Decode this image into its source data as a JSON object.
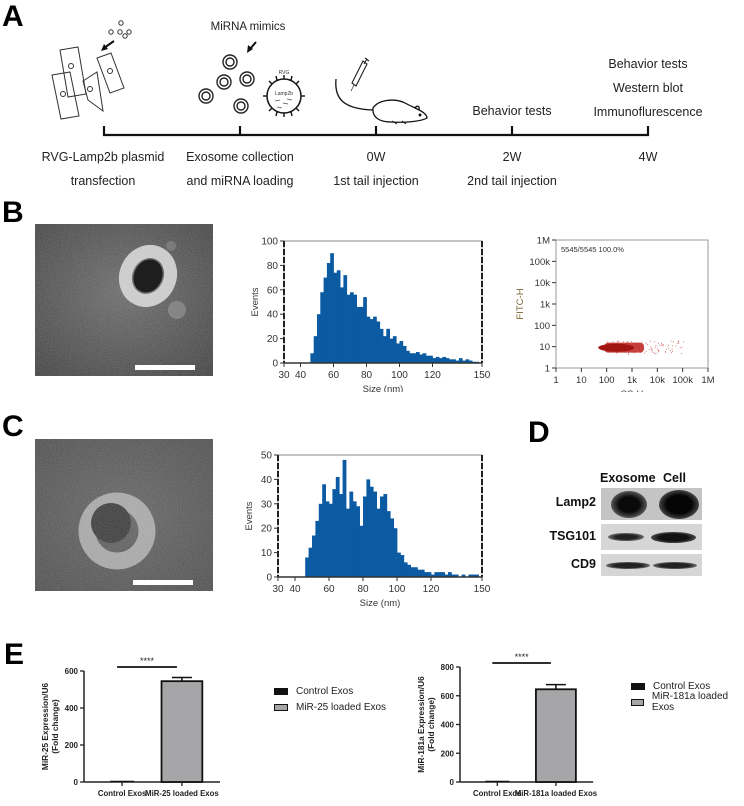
{
  "panels": {
    "A": {
      "letter": "A",
      "mimics_label": "MiRNA mimics",
      "exosome_rvg_label": "RVG",
      "exosome_lamp_label": "Lamp2b",
      "above_timeline": {
        "t2w": "Behavior tests",
        "t4w": [
          "Behavior tests",
          "Western blot",
          "Immunoflurescence"
        ]
      },
      "timeline": [
        {
          "line1": "RVG-Lamp2b plasmid",
          "line2": "transfection"
        },
        {
          "line1": "Exosome collection",
          "line2": "and miRNA loading"
        },
        {
          "line1": "0W",
          "line2": "1st tail injection"
        },
        {
          "line1": "2W",
          "line2": "2nd tail injection"
        },
        {
          "line1": "4W",
          "line2": ""
        }
      ]
    },
    "B": {
      "letter": "B"
    },
    "C": {
      "letter": "C"
    },
    "D": {
      "letter": "D",
      "columns": [
        "Exosome",
        "Cell"
      ],
      "rows": [
        "Lamp2",
        "TSG101",
        "CD9"
      ]
    },
    "E": {
      "letter": "E"
    }
  },
  "chart_data": [
    {
      "id": "B-histogram",
      "type": "bar",
      "title": "",
      "xlabel": "Size (nm)",
      "ylabel": "Events",
      "xlim": [
        30,
        150
      ],
      "ylim": [
        0,
        100
      ],
      "xticks": [
        "30",
        "40",
        "60",
        "80",
        "100",
        "120",
        "150"
      ],
      "yticks": [
        "0",
        "20",
        "40",
        "60",
        "80",
        "100"
      ],
      "color": "#0b5aa2",
      "x": [
        48,
        50,
        52,
        54,
        56,
        58,
        60,
        62,
        64,
        66,
        68,
        70,
        72,
        74,
        76,
        78,
        80,
        82,
        84,
        86,
        88,
        90,
        92,
        94,
        96,
        98,
        100,
        102,
        104,
        106,
        108,
        110,
        112,
        114,
        116,
        118,
        120,
        122,
        124,
        126,
        128,
        130,
        132,
        134,
        136,
        138,
        140,
        142,
        144,
        146,
        148,
        150
      ],
      "values": [
        8,
        22,
        40,
        58,
        70,
        82,
        90,
        74,
        76,
        62,
        72,
        56,
        58,
        56,
        46,
        46,
        54,
        38,
        36,
        38,
        34,
        28,
        22,
        28,
        20,
        22,
        16,
        18,
        14,
        10,
        8,
        8,
        9,
        7,
        8,
        6,
        6,
        4,
        5,
        4,
        5,
        4,
        3,
        3,
        2,
        4,
        2,
        3,
        2,
        1,
        1,
        0
      ]
    },
    {
      "id": "B-scatter",
      "type": "scatter",
      "title": "",
      "annotation": "5545/5545  100.0%",
      "xlabel": "SS-H",
      "ylabel": "FITC-H",
      "xscale": "log",
      "yscale": "log",
      "xticks": [
        "1",
        "10",
        "100",
        "1k",
        "10k",
        "100k",
        "1M"
      ],
      "yticks": [
        "1",
        "10",
        "100",
        "1k",
        "10k",
        "100k",
        "1M"
      ],
      "color": "#c0201c",
      "cluster": {
        "x_range": [
          80,
          3000
        ],
        "y_center": 9,
        "y_range": [
          5,
          15
        ],
        "events": 5545
      }
    },
    {
      "id": "C-histogram",
      "type": "bar",
      "title": "",
      "xlabel": "Size (nm)",
      "ylabel": "Events",
      "xlim": [
        30,
        150
      ],
      "ylim": [
        0,
        50
      ],
      "xticks": [
        "30",
        "40",
        "60",
        "80",
        "100",
        "120",
        "150"
      ],
      "yticks": [
        "0",
        "10",
        "20",
        "30",
        "40",
        "50"
      ],
      "color": "#0b5aa2",
      "x": [
        48,
        50,
        52,
        54,
        56,
        58,
        60,
        62,
        64,
        66,
        68,
        70,
        72,
        74,
        76,
        78,
        80,
        82,
        84,
        86,
        88,
        90,
        92,
        94,
        96,
        98,
        100,
        102,
        104,
        106,
        108,
        110,
        112,
        114,
        116,
        118,
        120,
        122,
        124,
        126,
        128,
        130,
        132,
        134,
        136,
        138,
        140,
        142,
        144,
        146,
        148,
        150
      ],
      "values": [
        8,
        12,
        17,
        23,
        30,
        38,
        31,
        30,
        36,
        41,
        34,
        48,
        28,
        35,
        31,
        29,
        21,
        33,
        40,
        37,
        35,
        28,
        33,
        34,
        27,
        24,
        20,
        10,
        9,
        6,
        5,
        4,
        4,
        3,
        3,
        2,
        2,
        1,
        2,
        2,
        2,
        1,
        2,
        1,
        1,
        0,
        1,
        0,
        1,
        1,
        1,
        0
      ]
    },
    {
      "id": "E-miR25",
      "type": "bar",
      "title": "",
      "xlabel": "",
      "ylabel": "MiR-25 Expression/U6\n(Fold change)",
      "ylim": [
        0,
        600
      ],
      "yticks": [
        "0",
        "200",
        "400",
        "600"
      ],
      "categories": [
        "Control Exos",
        "MiR-25 loaded Exos"
      ],
      "values": [
        1,
        545
      ],
      "errors": [
        0,
        20
      ],
      "colors": [
        "#111111",
        "#a6a6a8"
      ],
      "significance": "****",
      "legend": [
        "Control Exos",
        "MiR-25 loaded Exos"
      ]
    },
    {
      "id": "E-miR181a",
      "type": "bar",
      "title": "",
      "xlabel": "",
      "ylabel": "MiR-181a Expression/U6\n(Fold change)",
      "ylim": [
        0,
        800
      ],
      "yticks": [
        "0",
        "200",
        "400",
        "600",
        "800"
      ],
      "categories": [
        "Control Exos",
        "MiR-181a loaded Exos"
      ],
      "values": [
        1,
        645
      ],
      "errors": [
        0,
        32
      ],
      "colors": [
        "#111111",
        "#a6a6a8"
      ],
      "significance": "****",
      "legend": [
        "Control Exos",
        "MiR-181a loaded Exos"
      ]
    }
  ]
}
